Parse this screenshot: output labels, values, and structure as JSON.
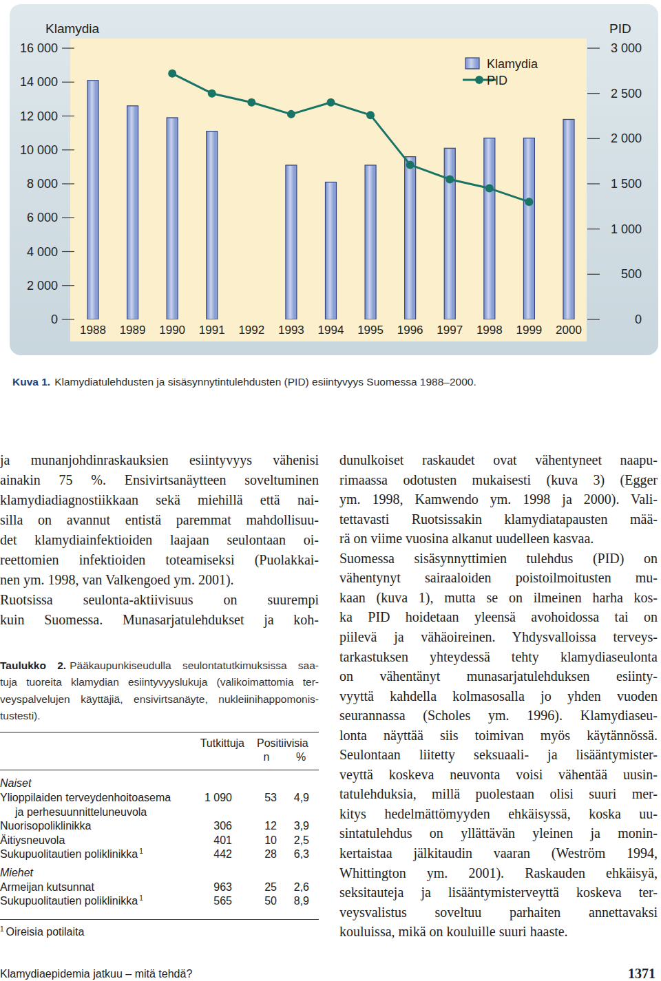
{
  "chart_data": {
    "type": "bar",
    "ylabel": "Klamydia",
    "y2label": "PID",
    "categories": [
      "1988",
      "1989",
      "1990",
      "1991",
      "1992",
      "1993",
      "1994",
      "1995",
      "1996",
      "1997",
      "1998",
      "1999",
      "2000"
    ],
    "series": [
      {
        "name": "Klamydia",
        "type": "bar",
        "color": "#8a9fd6",
        "values": [
          14100,
          12600,
          11900,
          11100,
          null,
          9100,
          8100,
          9100,
          9600,
          10100,
          10700,
          10700,
          11800
        ]
      },
      {
        "name": "PID",
        "type": "line",
        "color": "#1a7466",
        "marker": "circle",
        "axis": "y2",
        "values": [
          null,
          null,
          2720,
          2500,
          2400,
          2270,
          2400,
          2260,
          1710,
          1550,
          1450,
          1300,
          null
        ]
      }
    ],
    "ylim": [
      0,
      16000
    ],
    "yticks": [
      0,
      {
        "value": 2000,
        "label": "2 000"
      },
      {
        "value": 4000,
        "label": "4 000"
      },
      {
        "value": 6000,
        "label": "6 000"
      },
      {
        "value": 8000,
        "label": "8 000"
      },
      {
        "value": 10000,
        "label": "10 000"
      },
      {
        "value": 12000,
        "label": "12 000"
      },
      {
        "value": 14000,
        "label": "14 000"
      },
      {
        "value": 16000,
        "label": "16 000"
      }
    ],
    "y2lim": [
      0,
      3000
    ],
    "y2ticks": [
      0,
      500,
      {
        "value": 1000,
        "label": "1 000"
      },
      {
        "value": 1500,
        "label": "1 500"
      },
      {
        "value": 2000,
        "label": "2 000"
      },
      {
        "value": 2500,
        "label": "2 500"
      },
      {
        "value": 3000,
        "label": "3 000"
      }
    ],
    "grid": false,
    "legend": "top-right"
  },
  "figure_caption": {
    "label": "Kuva 1.",
    "text": "Klamydiatulehdusten ja sisäsynnytintulehdusten (PID) esiintyvyys Suomessa 1988–2000."
  },
  "body": {
    "left_column": [
      "ja munanjohdinraskauksien esiintyvyys vähenisi",
      "ainakin 75 %. Ensivirtsanäytteen soveltuminen",
      "klamydiadiagnostiikkaan sekä miehillä että nai-",
      "silla on avannut entistä paremmat mahdollisuu-",
      "det klamydiainfektioiden laajaan seulontaan oi-",
      "reettomien infektioiden toteamiseksi (Puolakkai-",
      "nen ym. 1998, van Valkengoed ym. 2001).",
      "Ruotsissa seulonta-aktiivisuus on suurempi",
      "kuin Suomessa. Munasarjatulehdukset ja koh-"
    ],
    "right_column": [
      "dunulkoiset raskaudet ovat vähentyneet naapu-",
      "rimaassa odotusten mukaisesti (kuva 3) (Egger",
      "ym. 1998, Kamwendo ym. 1998 ja 2000). Vali-",
      "tettavasti Ruotsissakin klamydiatapausten mää-",
      "rä on viime vuosina alkanut uudelleen kasvaa.",
      "Suomessa sisäsynnyttimien tulehdus (PID) on",
      "vähentynyt sairaaloiden poistoilmoitusten mu-",
      "kaan (kuva 1), mutta se on ilmeinen harha kos-",
      "ka PID hoidetaan yleensä avohoidossa tai on",
      "piilevä ja vähäoireinen. Yhdysvalloissa terveys-",
      "tarkastuksen yhteydessä tehty klamydiaseulonta",
      "on vähentänyt munasarjatulehduksen esiinty-",
      "vyyttä kahdella kolmasosalla jo yhden vuoden",
      "seurannassa (Scholes ym. 1996). Klamydiaseu-",
      "lonta näyttää siis toimivan myös käytännössä.",
      "Seulontaan liitetty seksuaali- ja lisääntymister-",
      "veyttä koskeva neuvonta voisi vähentää uusin-",
      "tatulehduksia, millä puolestaan olisi suuri mer-",
      "kitys hedelmättömyyden ehkäisyssä, koska uu-",
      "sintatulehdus on yllättävän yleinen ja monin-",
      "kertaistaa jälkitaudin vaaran (Weström 1994,",
      "Whittington ym. 2001). Raskauden ehkäisyä,",
      "seksitauteja ja lisääntymisterveyttä koskeva ter-",
      "veysvalistus soveltuu parhaiten annettavaksi",
      "kouluissa, mikä on kouluille suuri haaste."
    ]
  },
  "table": {
    "label": "Taulukko 2.",
    "caption_lines": [
      "Pääkaupunkiseudulla seulontatutkimuksissa saa-",
      "tuja tuoreita klamydian esiintyvyyslukuja (valikoimattomia ter-",
      "veyspalvelujen käyttäjiä, ensivirtsanäyte, nukleiinihappomonis-",
      "tustesti)."
    ],
    "header": {
      "tested": "Tutkittuja",
      "positive": "Positiivisia",
      "n": "n",
      "percent": "%"
    },
    "groups": [
      {
        "name": "Naiset",
        "rows": [
          {
            "label": [
              "Ylioppilaiden terveydenhoitoasema",
              "ja perhesuunnitteluneuvola"
            ],
            "tested": "1 090",
            "n": "53",
            "percent": "4,9"
          },
          {
            "label": [
              "Nuorisopoliklinikka"
            ],
            "tested": "306",
            "n": "12",
            "percent": "3,9"
          },
          {
            "label": [
              "Äitiysneuvola"
            ],
            "tested": "401",
            "n": "10",
            "percent": "2,5"
          },
          {
            "label": [
              "Sukupuolitautien poliklinikka"
            ],
            "note": "1",
            "tested": "442",
            "n": "28",
            "percent": "6,3"
          }
        ]
      },
      {
        "name": "Miehet",
        "rows": [
          {
            "label": [
              "Armeijan kutsunnat"
            ],
            "tested": "963",
            "n": "25",
            "percent": "2,6"
          },
          {
            "label": [
              "Sukupuolitautien poliklinikka"
            ],
            "note": "1",
            "tested": "565",
            "n": "50",
            "percent": "8,9"
          }
        ]
      }
    ],
    "footnote": {
      "mark": "1",
      "text": "Oireisia potilaita"
    }
  },
  "footer": {
    "running_title": "Klamydiaepidemia jatkuu – mitä tehdä?",
    "page": "1371"
  }
}
